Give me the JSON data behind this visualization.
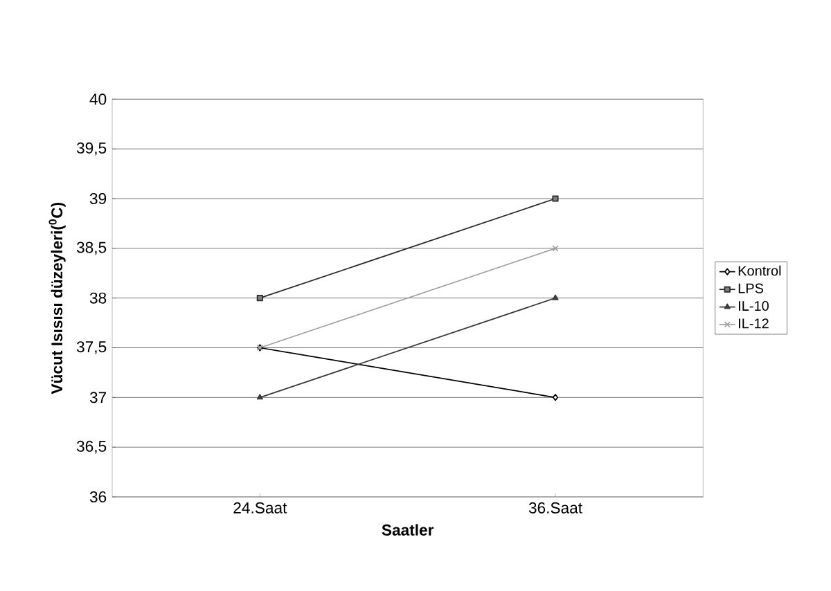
{
  "chart_data": {
    "type": "line",
    "xlabel": "Saatler",
    "ylabel": "Vücut Isısısı düzeyleri($^{0}$C)",
    "categories": [
      "24.Saat",
      "36.Saat"
    ],
    "series": [
      {
        "name": "Kontrol",
        "color": "#000000",
        "marker": "diamond",
        "values": [
          37.5,
          37
        ]
      },
      {
        "name": "LPS",
        "color": "#2a2a2a",
        "marker": "square",
        "values": [
          38,
          39
        ]
      },
      {
        "name": "IL-10",
        "color": "#3a3a3a",
        "marker": "triangle",
        "values": [
          37,
          38
        ]
      },
      {
        "name": "IL-12",
        "color": "#a0a0a0",
        "marker": "cross",
        "values": [
          37.5,
          38.5
        ]
      }
    ],
    "ylim": [
      36,
      40
    ],
    "yticks": [
      36,
      {
        "value": 36.5,
        "label": "36,5"
      },
      37,
      {
        "value": 37.5,
        "label": "37,5"
      },
      38,
      {
        "value": 38.5,
        "label": "38,5"
      },
      39,
      {
        "value": 39.5,
        "label": "39,5"
      },
      40
    ],
    "grid": "y",
    "legend": "right",
    "line_style": "solid"
  }
}
